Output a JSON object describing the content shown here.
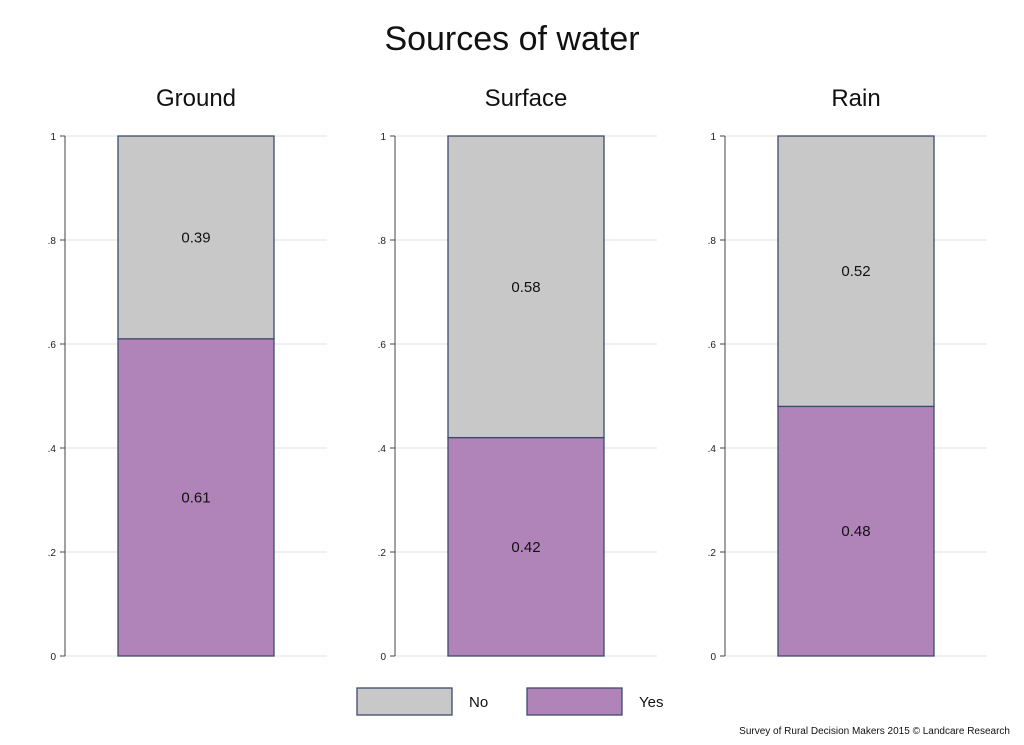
{
  "chart_data": {
    "type": "bar",
    "stacked": true,
    "title": "Sources of water",
    "panels": [
      {
        "title": "Ground",
        "segments": [
          {
            "name": "Yes",
            "value": 0.61,
            "label": "0.61"
          },
          {
            "name": "No",
            "value": 0.39,
            "label": "0.39"
          }
        ]
      },
      {
        "title": "Surface",
        "segments": [
          {
            "name": "Yes",
            "value": 0.42,
            "label": "0.42"
          },
          {
            "name": "No",
            "value": 0.58,
            "label": "0.58"
          }
        ]
      },
      {
        "title": "Rain",
        "segments": [
          {
            "name": "Yes",
            "value": 0.48,
            "label": "0.48"
          },
          {
            "name": "No",
            "value": 0.52,
            "label": "0.52"
          }
        ]
      }
    ],
    "yticks": [
      {
        "value": 0,
        "label": "0"
      },
      {
        "value": 0.2,
        "label": ".2"
      },
      {
        "value": 0.4,
        "label": ".4"
      },
      {
        "value": 0.6,
        "label": ".6"
      },
      {
        "value": 0.8,
        "label": ".8"
      },
      {
        "value": 1,
        "label": "1"
      }
    ],
    "ylim": [
      0,
      1
    ],
    "grid": true,
    "legend": {
      "position": "bottom",
      "entries": [
        {
          "name": "No",
          "color": "#c8c8c8"
        },
        {
          "name": "Yes",
          "color": "#b083b9"
        }
      ]
    },
    "colors": {
      "Yes": "#b083b9",
      "No": "#c8c8c8",
      "bar_outline": "#3b4a6e"
    },
    "footnote": "Survey of Rural Decision Makers 2015 © Landcare Research"
  }
}
